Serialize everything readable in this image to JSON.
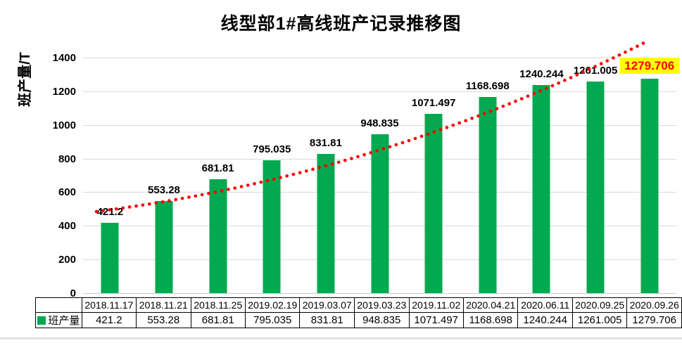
{
  "title": "线型部1#高线班产记录推移图",
  "legend": {
    "label": "班产量"
  },
  "chart_data": {
    "type": "bar",
    "title": "线型部1#高线班产记录推移图",
    "xlabel": "",
    "ylabel": "班产量/T",
    "ylim": [
      0,
      1500
    ],
    "yticks": [
      0,
      200,
      400,
      600,
      800,
      1000,
      1200,
      1400
    ],
    "grid": true,
    "legend_position": "bottom-left",
    "categories": [
      "2018.11.17",
      "2018.11.21",
      "2018.11.25",
      "2019.02.19",
      "2019.03.07",
      "2019.03.23",
      "2019.11.02",
      "2020.04.21",
      "2020.06.11",
      "2020.09.25",
      "2020.09.26"
    ],
    "series": [
      {
        "name": "班产量",
        "values": [
          421.2,
          553.28,
          681.81,
          795.035,
          831.81,
          948.835,
          1071.497,
          1168.698,
          1240.244,
          1261.005,
          1279.706
        ]
      }
    ],
    "data_labels": [
      "421.2",
      "553.28",
      "681.81",
      "795.035",
      "831.81",
      "948.835",
      "1071.497",
      "1168.698",
      "1240.244",
      "1261.005",
      "1279.706"
    ],
    "bar_color": "#00A94F",
    "gridline_color": "#D9D9D9",
    "trendline": {
      "style": "dotted",
      "color": "#FF0000"
    },
    "highlight": {
      "index": 10,
      "background": "#FFFF00",
      "text_color": "#FF0000"
    }
  }
}
